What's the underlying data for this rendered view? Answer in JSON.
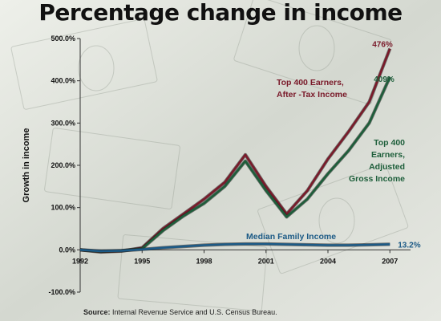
{
  "title": "Percentage change in income",
  "source_label": "Source:",
  "source_text": " Internal Revenue Service and U.S. Census Bureau.",
  "colors": {
    "top400_after_tax": "#7a1a2a",
    "top400_agi": "#1d5e3a",
    "median": "#1c5a86",
    "axis": "#333333",
    "text": "#111111"
  },
  "chart_data": {
    "type": "line",
    "title": "Percentage change in income",
    "xlabel": "",
    "ylabel": "Growth in income",
    "xlim": [
      1992,
      2008
    ],
    "ylim": [
      -100,
      500
    ],
    "x_ticks": [
      1992,
      1995,
      1998,
      2001,
      2004,
      2007
    ],
    "x_tick_labels": [
      "1992",
      "1995",
      "1998",
      "2001",
      "2004",
      "2007"
    ],
    "y_ticks": [
      -100,
      0,
      100,
      200,
      300,
      400,
      500
    ],
    "y_tick_labels": [
      "-100.0%",
      "0.0%",
      "100.0%",
      "200.0%",
      "300.0%",
      "400.0%",
      "500.0%"
    ],
    "grid": false,
    "series": [
      {
        "name": "Top 400 Earners, After -Tax Income",
        "name_lines": [
          "Top 400 Earners,",
          "After -Tax Income"
        ],
        "color_key": "top400_after_tax",
        "end_label": "476%",
        "x": [
          1992,
          1993,
          1994,
          1995,
          1996,
          1997,
          1998,
          1999,
          2000,
          2001,
          2002,
          2003,
          2004,
          2005,
          2006,
          2007
        ],
        "y": [
          0,
          -5,
          -3,
          5,
          50,
          85,
          120,
          160,
          225,
          150,
          85,
          140,
          215,
          280,
          350,
          476
        ]
      },
      {
        "name": "Top 400 Earners, Adjusted Gross Income",
        "name_lines": [
          "Top 400",
          "Earners,",
          "Adjusted",
          "Gross Income"
        ],
        "color_key": "top400_agi",
        "end_label": "409%",
        "x": [
          1992,
          1993,
          1994,
          1995,
          1996,
          1997,
          1998,
          1999,
          2000,
          2001,
          2002,
          2003,
          2004,
          2005,
          2006,
          2007
        ],
        "y": [
          0,
          -4,
          -2,
          3,
          45,
          80,
          110,
          150,
          210,
          140,
          78,
          120,
          180,
          235,
          300,
          409
        ]
      },
      {
        "name": "Median Family Income",
        "name_lines": [
          "Median Family Income"
        ],
        "color_key": "median",
        "end_label": "13.2%",
        "x": [
          1992,
          1993,
          1994,
          1995,
          1996,
          1997,
          1998,
          1999,
          2000,
          2001,
          2002,
          2003,
          2004,
          2005,
          2006,
          2007
        ],
        "y": [
          0,
          -3,
          -2,
          1,
          5,
          8,
          11,
          13,
          14,
          14,
          13,
          12,
          11,
          11,
          12,
          13.2
        ]
      }
    ]
  }
}
